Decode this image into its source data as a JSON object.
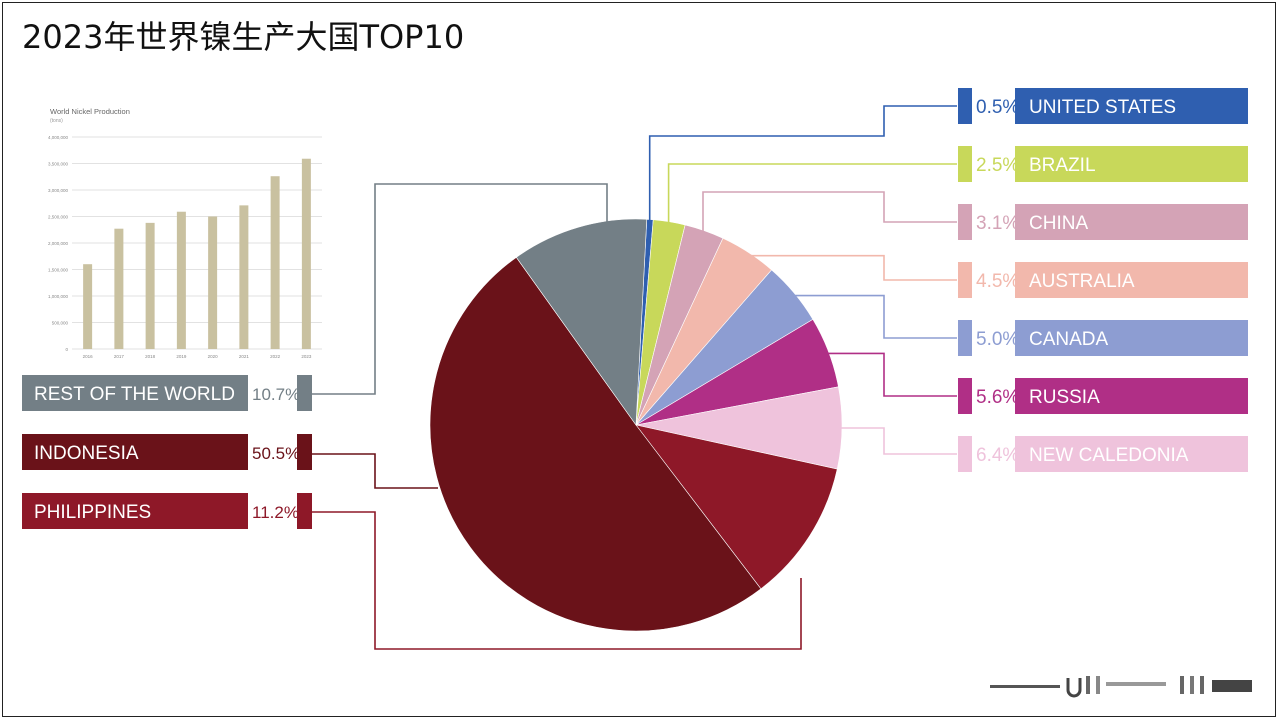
{
  "page": {
    "title": "2023年世界镍生产大国TOP10"
  },
  "chart_data": [
    {
      "type": "pie",
      "title": "",
      "slices": [
        {
          "label": "UNITED STATES",
          "pct_label": "0.5%",
          "value": 0.5,
          "color": "#2f5fb0"
        },
        {
          "label": "BRAZIL",
          "pct_label": "2.5%",
          "value": 2.5,
          "color": "#c8d85a"
        },
        {
          "label": "CHINA",
          "pct_label": "3.1%",
          "value": 3.1,
          "color": "#d4a3b6"
        },
        {
          "label": "AUSTRALIA",
          "pct_label": "4.5%",
          "value": 4.5,
          "color": "#f2b8ac"
        },
        {
          "label": "CANADA",
          "pct_label": "5.0%",
          "value": 5.0,
          "color": "#8d9dd2"
        },
        {
          "label": "RUSSIA",
          "pct_label": "5.6%",
          "value": 5.6,
          "color": "#b02f86"
        },
        {
          "label": "NEW CALEDONIA",
          "pct_label": "6.4%",
          "value": 6.4,
          "color": "#efc3dc"
        },
        {
          "label": "PHILIPPINES",
          "pct_label": "11.2%",
          "value": 11.2,
          "color": "#8e1828"
        },
        {
          "label": "INDONESIA",
          "pct_label": "50.5%",
          "value": 50.5,
          "color": "#6a1219"
        },
        {
          "label": "REST OF THE WORLD",
          "pct_label": "10.7%",
          "value": 10.7,
          "color": "#737f86"
        }
      ]
    },
    {
      "type": "bar",
      "title": "World Nickel Production",
      "subtitle": "(tons)",
      "categories": [
        "2016",
        "2017",
        "2018",
        "2019",
        "2020",
        "2021",
        "2022",
        "2023"
      ],
      "values": [
        1600000,
        2270000,
        2380000,
        2590000,
        2500000,
        2710000,
        3260000,
        3590000
      ],
      "yticks": [
        "0",
        "500,000",
        "1,000,000",
        "1,500,000",
        "2,000,000",
        "2,500,000",
        "3,000,000",
        "3,500,000",
        "4,000,000"
      ],
      "ylim": [
        0,
        4000000
      ],
      "grid": true,
      "bar_color": "#c9c1a0"
    }
  ]
}
